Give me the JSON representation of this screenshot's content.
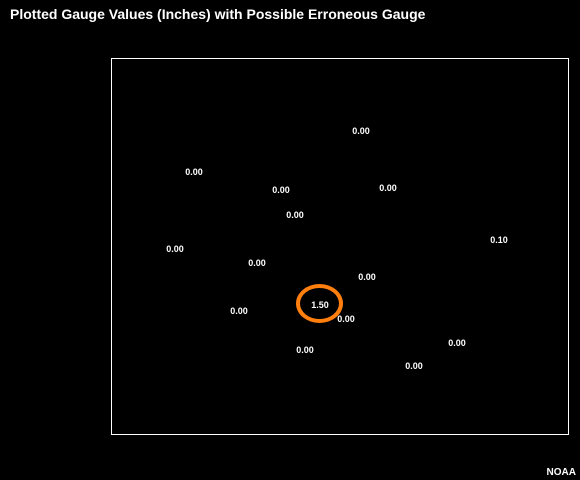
{
  "title": "Plotted Gauge Values (Inches) with Possible Erroneous Gauge",
  "credit": "NOAA",
  "colors": {
    "background": "#000000",
    "text": "#ffffff",
    "highlight": "#ff7f0e"
  },
  "gauges": [
    {
      "value": "0.00"
    },
    {
      "value": "0.00"
    },
    {
      "value": "0.00"
    },
    {
      "value": "0.00"
    },
    {
      "value": "0.00"
    },
    {
      "value": "0.00"
    },
    {
      "value": "0.10"
    },
    {
      "value": "0.00"
    },
    {
      "value": "0.00"
    },
    {
      "value": "1.50",
      "flagged": true
    },
    {
      "value": "0.00"
    },
    {
      "value": "0.00"
    },
    {
      "value": "0.00"
    },
    {
      "value": "0.00"
    },
    {
      "value": "0.00"
    }
  ]
}
